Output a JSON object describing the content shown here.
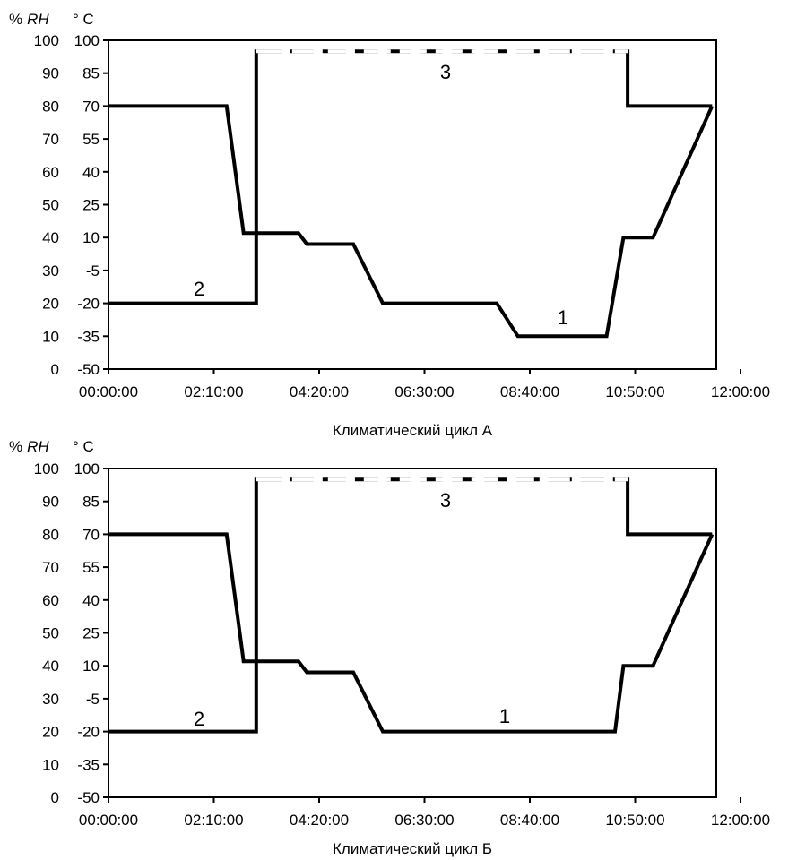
{
  "chart_data": [
    {
      "type": "line",
      "title": "Климатический цикл А",
      "left_axis_unit_prefix": "%",
      "left_axis_unit_italic": "RH",
      "right_axis_unit": "° C",
      "left_ticks": [
        "100",
        "90",
        "80",
        "70",
        "60",
        "50",
        "40",
        "30",
        "20",
        "10",
        "0"
      ],
      "right_ticks": [
        "100",
        "85",
        "70",
        "55",
        "40",
        "25",
        "10",
        "-5",
        "-20",
        "-35",
        "-50"
      ],
      "x_ticks": [
        "00:00:00",
        "02:10:00",
        "04:20:00",
        "06:30:00",
        "08:40:00",
        "10:50:00",
        "12:00:00"
      ],
      "x_unit": "minutes",
      "xlim": [
        0,
        720
      ],
      "ylim_rh": [
        0,
        100
      ],
      "ylim_temp": [
        -50,
        100
      ],
      "series": [
        {
          "label": "1",
          "style": "solid",
          "axis": "temp",
          "points": [
            [
              0,
              70
            ],
            [
              140,
              70
            ],
            [
              160,
              12
            ],
            [
              225,
              12
            ],
            [
              235,
              7
            ],
            [
              290,
              7
            ],
            [
              325,
              -20
            ],
            [
              460,
              -20
            ],
            [
              485,
              -35
            ],
            [
              590,
              -35
            ],
            [
              610,
              10
            ],
            [
              645,
              10
            ],
            [
              715,
              70
            ]
          ]
        },
        {
          "label": "2",
          "style": "solid",
          "axis": "temp",
          "points": [
            [
              0,
              -20
            ],
            [
              175,
              -20
            ],
            [
              175,
              95
            ],
            [
              615,
              95
            ],
            [
              615,
              70
            ],
            [
              715,
              70
            ]
          ]
        },
        {
          "label": "3",
          "style": "dashed",
          "axis": "temp",
          "points": [
            [
              175,
              95
            ],
            [
              615,
              95
            ]
          ]
        }
      ]
    },
    {
      "type": "line",
      "title": "Климатический цикл Б",
      "left_axis_unit_prefix": "%",
      "left_axis_unit_italic": "RH",
      "right_axis_unit": "° C",
      "left_ticks": [
        "100",
        "90",
        "80",
        "70",
        "60",
        "50",
        "40",
        "30",
        "20",
        "10",
        "0"
      ],
      "right_ticks": [
        "100",
        "85",
        "70",
        "55",
        "40",
        "25",
        "10",
        "-5",
        "-20",
        "-35",
        "-50"
      ],
      "x_ticks": [
        "00:00:00",
        "02:10:00",
        "04:20:00",
        "06:30:00",
        "08:40:00",
        "10:50:00",
        "12:00:00"
      ],
      "x_unit": "minutes",
      "xlim": [
        0,
        720
      ],
      "ylim_rh": [
        0,
        100
      ],
      "ylim_temp": [
        -50,
        100
      ],
      "series": [
        {
          "label": "1",
          "style": "solid",
          "axis": "temp",
          "points": [
            [
              0,
              70
            ],
            [
              140,
              70
            ],
            [
              160,
              12
            ],
            [
              225,
              12
            ],
            [
              235,
              7
            ],
            [
              290,
              7
            ],
            [
              325,
              -20
            ],
            [
              600,
              -20
            ],
            [
              610,
              10
            ],
            [
              645,
              10
            ],
            [
              715,
              70
            ]
          ]
        },
        {
          "label": "2",
          "style": "solid",
          "axis": "temp",
          "points": [
            [
              0,
              -20
            ],
            [
              175,
              -20
            ],
            [
              175,
              95
            ],
            [
              615,
              95
            ],
            [
              615,
              70
            ],
            [
              715,
              70
            ]
          ]
        },
        {
          "label": "3",
          "style": "dashed",
          "axis": "temp",
          "points": [
            [
              175,
              95
            ],
            [
              615,
              95
            ]
          ]
        }
      ]
    }
  ]
}
